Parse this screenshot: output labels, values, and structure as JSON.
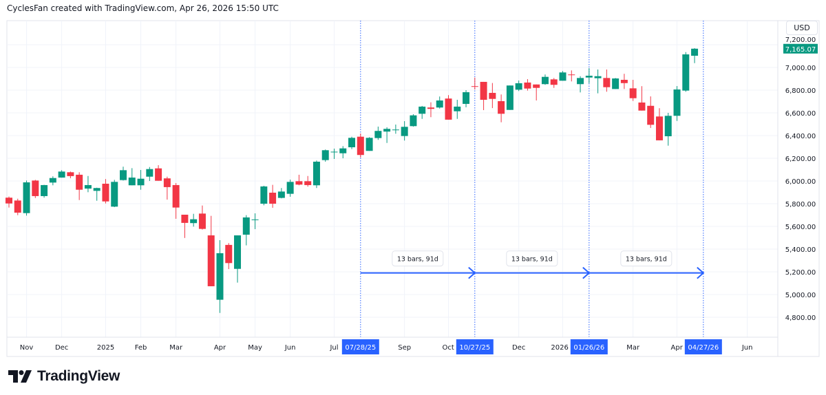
{
  "header": {
    "attribution": "CyclesFan created with TradingView.com, Apr 26, 2026 15:50 UTC"
  },
  "footer": {
    "brand": "TradingView"
  },
  "chart_data": {
    "type": "candlestick",
    "interval": "weekly",
    "currency": "USD",
    "colors": {
      "up": "#089981",
      "down": "#f23645",
      "accent": "#2962ff",
      "grid": "#f0f3fa"
    },
    "grid": true,
    "ylim": [
      4700,
      7250
    ],
    "y_ticks": [
      {
        "value": 4800,
        "label": "4,800.00"
      },
      {
        "value": 5000,
        "label": "5,000.00"
      },
      {
        "value": 5200,
        "label": "5,200.00"
      },
      {
        "value": 5400,
        "label": "5,400.00"
      },
      {
        "value": 5600,
        "label": "5,600.00"
      },
      {
        "value": 5800,
        "label": "5,800.00"
      },
      {
        "value": 6000,
        "label": "6,000.00"
      },
      {
        "value": 6200,
        "label": "6,200.00"
      },
      {
        "value": 6400,
        "label": "6,400.00"
      },
      {
        "value": 6600,
        "label": "6,600.00"
      },
      {
        "value": 6800,
        "label": "6,800.00"
      },
      {
        "value": 7000,
        "label": "7,000.00"
      },
      {
        "value": 7200,
        "label": "7,200.00"
      }
    ],
    "x_ticks": [
      {
        "date": "2024-11-04",
        "label": "Nov"
      },
      {
        "date": "2024-12-02",
        "label": "Dec"
      },
      {
        "date": "2025-01-06",
        "label": "2025"
      },
      {
        "date": "2025-02-03",
        "label": "Feb"
      },
      {
        "date": "2025-03-03",
        "label": "Mar"
      },
      {
        "date": "2025-04-07",
        "label": "Apr"
      },
      {
        "date": "2025-05-05",
        "label": "May"
      },
      {
        "date": "2025-06-02",
        "label": "Jun"
      },
      {
        "date": "2025-07-07",
        "label": "Jul"
      },
      {
        "date": "2025-09-01",
        "label": "Sep"
      },
      {
        "date": "2025-10-06",
        "label": "Oct"
      },
      {
        "date": "2025-12-01",
        "label": "Dec"
      },
      {
        "date": "2026-01-05",
        "label": "2026"
      },
      {
        "date": "2026-03-02",
        "label": "Mar"
      },
      {
        "date": "2026-04-06",
        "label": "Apr"
      },
      {
        "date": "2026-06-01",
        "label": "Jun"
      }
    ],
    "last_price": {
      "value": 7165.07,
      "label": "7,165.07"
    },
    "date_markers": [
      {
        "date": "2025-07-28",
        "label": "07/28/25"
      },
      {
        "date": "2025-10-27",
        "label": "10/27/25"
      },
      {
        "date": "2026-01-26",
        "label": "01/26/26"
      },
      {
        "date": "2026-04-27",
        "label": "04/27/26"
      }
    ],
    "measurements": [
      {
        "from": "2025-07-28",
        "to": "2025-10-27",
        "price": 5190,
        "label": "13 bars, 91d"
      },
      {
        "from": "2025-10-27",
        "to": "2026-01-26",
        "price": 5190,
        "label": "13 bars, 91d"
      },
      {
        "from": "2026-01-26",
        "to": "2026-04-27",
        "price": 5190,
        "label": "13 bars, 91d"
      }
    ],
    "first_date": "2024-10-21",
    "columns": [
      "open",
      "high",
      "low",
      "close"
    ],
    "candles": [
      [
        5853,
        5863,
        5766,
        5802
      ],
      [
        5828,
        5844,
        5699,
        5721
      ],
      [
        5717,
        6004,
        5695,
        5988
      ],
      [
        6004,
        6010,
        5850,
        5867
      ],
      [
        5867,
        5966,
        5853,
        5964
      ],
      [
        5986,
        6041,
        5962,
        6026
      ],
      [
        6030,
        6095,
        6029,
        6083
      ],
      [
        6077,
        6083,
        6024,
        6043
      ],
      [
        6055,
        6077,
        5832,
        5923
      ],
      [
        5933,
        6044,
        5901,
        5964
      ],
      [
        5913,
        5941,
        5826,
        5938
      ],
      [
        5976,
        6017,
        5802,
        5820
      ],
      [
        5774,
        6010,
        5770,
        5992
      ],
      [
        6008,
        6126,
        6004,
        6095
      ],
      [
        5962,
        6113,
        5962,
        6030
      ],
      [
        5962,
        6097,
        5923,
        6020
      ],
      [
        6038,
        6123,
        6000,
        6105
      ],
      [
        6111,
        6139,
        6002,
        6002
      ],
      [
        6023,
        6038,
        5836,
        5946
      ],
      [
        5964,
        5982,
        5667,
        5766
      ],
      [
        5703,
        5703,
        5498,
        5631
      ],
      [
        5629,
        5711,
        5598,
        5663
      ],
      [
        5713,
        5784,
        5572,
        5578
      ],
      [
        5521,
        5693,
        5073,
        5073
      ],
      [
        4954,
        5479,
        4838,
        5364
      ],
      [
        5437,
        5453,
        5224,
        5277
      ],
      [
        5226,
        5521,
        5105,
        5521
      ],
      [
        5527,
        5699,
        5433,
        5679
      ],
      [
        5657,
        5715,
        5576,
        5661
      ],
      [
        5800,
        5958,
        5786,
        5952
      ],
      [
        5897,
        5966,
        5764,
        5800
      ],
      [
        5851,
        5938,
        5847,
        5907
      ],
      [
        5887,
        6012,
        5861,
        5992
      ],
      [
        5998,
        6055,
        5962,
        5968
      ],
      [
        5998,
        6044,
        5950,
        5964
      ],
      [
        5962,
        6180,
        5938,
        6170
      ],
      [
        6184,
        6277,
        6170,
        6271
      ],
      [
        6253,
        6285,
        6194,
        6258
      ],
      [
        6244,
        6307,
        6200,
        6287
      ],
      [
        6297,
        6390,
        6281,
        6380
      ],
      [
        6390,
        6418,
        6206,
        6229
      ],
      [
        6265,
        6386,
        6265,
        6380
      ],
      [
        6378,
        6479,
        6362,
        6441
      ],
      [
        6435,
        6473,
        6335,
        6459
      ],
      [
        6449,
        6497,
        6416,
        6453
      ],
      [
        6396,
        6527,
        6356,
        6477
      ],
      [
        6483,
        6588,
        6479,
        6578
      ],
      [
        6592,
        6661,
        6547,
        6655
      ],
      [
        6647,
        6693,
        6562,
        6635
      ],
      [
        6647,
        6744,
        6638,
        6709
      ],
      [
        6726,
        6756,
        6540,
        6540
      ],
      [
        6614,
        6715,
        6547,
        6655
      ],
      [
        6679,
        6800,
        6649,
        6782
      ],
      [
        6835,
        6911,
        6806,
        6829
      ],
      [
        6873,
        6873,
        6624,
        6715
      ],
      [
        6776,
        6863,
        6642,
        6723
      ],
      [
        6703,
        6762,
        6517,
        6592
      ],
      [
        6626,
        6841,
        6626,
        6841
      ],
      [
        6804,
        6885,
        6792,
        6861
      ],
      [
        6867,
        6897,
        6796,
        6814
      ],
      [
        6850,
        6850,
        6709,
        6820
      ],
      [
        6853,
        6938,
        6847,
        6917
      ],
      [
        6895,
        6907,
        6820,
        6847
      ],
      [
        6883,
        6968,
        6883,
        6956
      ],
      [
        6938,
        6974,
        6877,
        6932
      ],
      [
        6853,
        6923,
        6780,
        6907
      ],
      [
        6911,
        6994,
        6861,
        6927
      ],
      [
        6905,
        6982,
        6772,
        6923
      ],
      [
        6907,
        6982,
        6786,
        6826
      ],
      [
        6810,
        6907,
        6810,
        6903
      ],
      [
        6891,
        6944,
        6810,
        6862
      ],
      [
        6816,
        6891,
        6705,
        6729
      ],
      [
        6691,
        6835,
        6620,
        6620
      ],
      [
        6662,
        6745,
        6467,
        6495
      ],
      [
        6568,
        6641,
        6358,
        6358
      ],
      [
        6394,
        6600,
        6311,
        6574
      ],
      [
        6574,
        6836,
        6529,
        6806
      ],
      [
        6796,
        7135,
        6786,
        7115
      ],
      [
        7103,
        7170,
        7038,
        7165.07
      ]
    ]
  }
}
